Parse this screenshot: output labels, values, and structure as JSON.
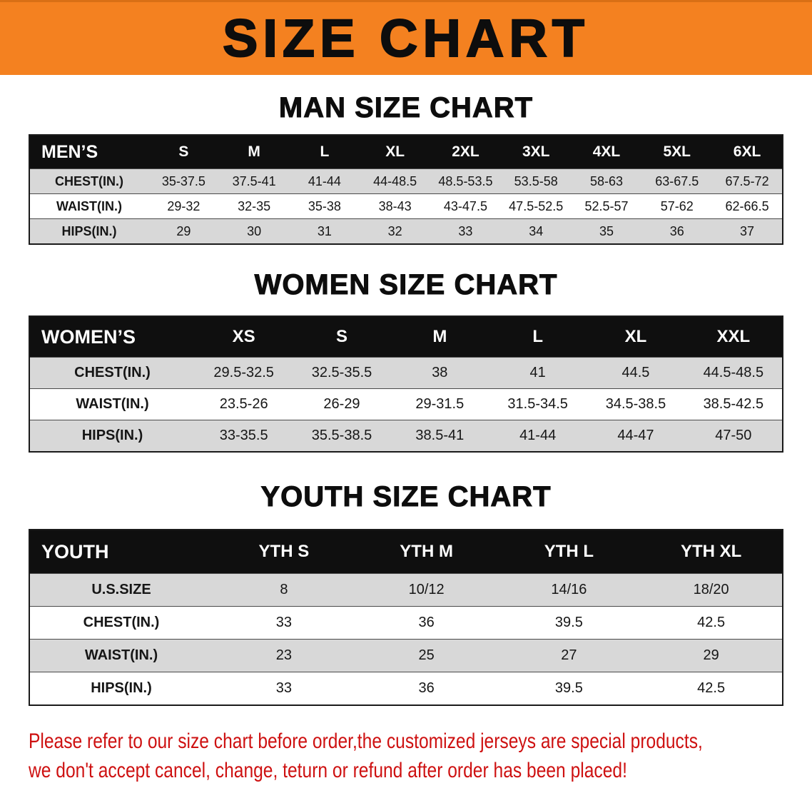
{
  "banner": {
    "title": "SIZE CHART"
  },
  "colors": {
    "banner-orange": "#f48120",
    "header-black": "#0f0f0f",
    "row-gray": "#d8d8d8",
    "warning-red": "#ce1111"
  },
  "sections": [
    {
      "id": "men",
      "heading": "MAN SIZE CHART",
      "table": {
        "header": [
          "MEN’S",
          "S",
          "M",
          "L",
          "XL",
          "2XL",
          "3XL",
          "4XL",
          "5XL",
          "6XL"
        ],
        "rows": [
          {
            "label": "CHEST(IN.)",
            "values": [
              "35-37.5",
              "37.5-41",
              "41-44",
              "44-48.5",
              "48.5-53.5",
              "53.5-58",
              "58-63",
              "63-67.5",
              "67.5-72"
            ]
          },
          {
            "label": "WAIST(IN.)",
            "values": [
              "29-32",
              "32-35",
              "35-38",
              "38-43",
              "43-47.5",
              "47.5-52.5",
              "52.5-57",
              "57-62",
              "62-66.5"
            ]
          },
          {
            "label": "HIPS(IN.)",
            "values": [
              "29",
              "30",
              "31",
              "32",
              "33",
              "34",
              "35",
              "36",
              "37"
            ]
          }
        ]
      }
    },
    {
      "id": "women",
      "heading": "WOMEN SIZE CHART",
      "table": {
        "header": [
          "WOMEN’S",
          "XS",
          "S",
          "M",
          "L",
          "XL",
          "XXL"
        ],
        "rows": [
          {
            "label": "CHEST(IN.)",
            "values": [
              "29.5-32.5",
              "32.5-35.5",
              "38",
              "41",
              "44.5",
              "44.5-48.5"
            ]
          },
          {
            "label": "WAIST(IN.)",
            "values": [
              "23.5-26",
              "26-29",
              "29-31.5",
              "31.5-34.5",
              "34.5-38.5",
              "38.5-42.5"
            ]
          },
          {
            "label": "HIPS(IN.)",
            "values": [
              "33-35.5",
              "35.5-38.5",
              "38.5-41",
              "41-44",
              "44-47",
              "47-50"
            ]
          }
        ]
      }
    },
    {
      "id": "youth",
      "heading": "YOUTH SIZE CHART",
      "table": {
        "header": [
          "YOUTH",
          "YTH S",
          "YTH M",
          "YTH L",
          "YTH XL"
        ],
        "rows": [
          {
            "label": "U.S.SIZE",
            "values": [
              "8",
              "10/12",
              "14/16",
              "18/20"
            ]
          },
          {
            "label": "CHEST(IN.)",
            "values": [
              "33",
              "36",
              "39.5",
              "42.5"
            ]
          },
          {
            "label": "WAIST(IN.)",
            "values": [
              "23",
              "25",
              "27",
              "29"
            ]
          },
          {
            "label": "HIPS(IN.)",
            "values": [
              "33",
              "36",
              "39.5",
              "42.5"
            ]
          }
        ]
      }
    }
  ],
  "disclaimer": {
    "line1": "Please refer to our size chart before order,the customized jerseys are special products,",
    "line2": "we don't accept cancel, change, teturn or refund after order has been placed!"
  }
}
